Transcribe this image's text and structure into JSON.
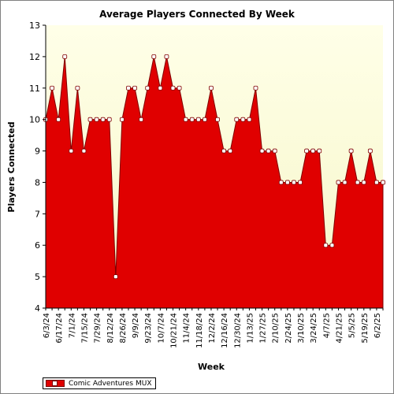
{
  "chart_data": {
    "type": "area",
    "title": "Average Players Connected By Week",
    "xlabel": "Week",
    "ylabel": "Players Connected",
    "ylim": [
      4,
      13
    ],
    "yticks": [
      4,
      5,
      6,
      7,
      8,
      9,
      10,
      11,
      12,
      13
    ],
    "grid": false,
    "legend_position": "bottom-left",
    "x": [
      "6/3/24",
      "6/10/24",
      "6/17/24",
      "6/24/24",
      "7/1/24",
      "7/8/24",
      "7/15/24",
      "7/22/24",
      "7/29/24",
      "8/5/24",
      "8/12/24",
      "8/19/24",
      "8/26/24",
      "9/2/24",
      "9/9/24",
      "9/16/24",
      "9/23/24",
      "9/30/24",
      "10/7/24",
      "10/14/24",
      "10/21/24",
      "10/28/24",
      "11/4/24",
      "11/11/24",
      "11/18/24",
      "11/25/24",
      "12/2/24",
      "12/9/24",
      "12/16/24",
      "12/23/24",
      "12/30/24",
      "1/6/25",
      "1/13/25",
      "1/20/25",
      "1/27/25",
      "2/3/25",
      "2/10/25",
      "2/17/25",
      "2/24/25",
      "3/3/25",
      "3/10/25",
      "3/17/25",
      "3/24/25",
      "3/31/25",
      "4/7/25",
      "4/14/25",
      "4/21/25",
      "4/28/25",
      "5/5/25",
      "5/12/25",
      "5/19/25",
      "5/26/25",
      "6/2/25",
      "6/9/25"
    ],
    "x_tick_labels": [
      "6/3/24",
      "6/17/24",
      "7/1/24",
      "7/15/24",
      "7/29/24",
      "8/12/24",
      "8/26/24",
      "9/9/24",
      "9/23/24",
      "10/7/24",
      "10/21/24",
      "11/4/24",
      "11/18/24",
      "12/2/24",
      "12/16/24",
      "12/30/24",
      "1/13/25",
      "1/27/25",
      "2/10/25",
      "2/24/25",
      "3/10/25",
      "3/24/25",
      "4/7/25",
      "4/21/25",
      "5/5/25",
      "5/19/25",
      "6/2/25"
    ],
    "series": [
      {
        "name": "Comic Adventures MUX",
        "color": "#e00000",
        "values": [
          10,
          11,
          10,
          12,
          9,
          11,
          9,
          10,
          10,
          10,
          10,
          5,
          10,
          11,
          11,
          10,
          11,
          12,
          11,
          12,
          11,
          11,
          10,
          10,
          10,
          10,
          11,
          10,
          9,
          9,
          10,
          10,
          10,
          11,
          9,
          9,
          9,
          8,
          8,
          8,
          8,
          9,
          9,
          9,
          6,
          6,
          8,
          8,
          9,
          8,
          8,
          9,
          8,
          8
        ]
      }
    ]
  },
  "colors": {
    "plot_background_top": "#ffffe8",
    "plot_background_bottom": "#f6f6c8",
    "area_fill": "#e00000",
    "area_outline": "#800000"
  }
}
